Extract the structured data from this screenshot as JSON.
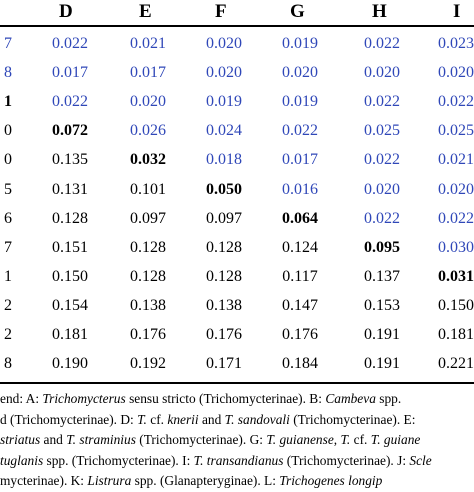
{
  "headers": [
    "D",
    "E",
    "F",
    "G",
    "H",
    "I"
  ],
  "rows": [
    {
      "label": "7",
      "values": [
        "0.022",
        "0.021",
        "0.020",
        "0.019",
        "0.022",
        "0.023"
      ],
      "blue": [
        true,
        true,
        true,
        true,
        true,
        true
      ],
      "bold": [
        false,
        false,
        false,
        false,
        false,
        false
      ],
      "label_blue": true,
      "label_bold": false
    },
    {
      "label": "8",
      "values": [
        "0.017",
        "0.017",
        "0.020",
        "0.020",
        "0.020",
        "0.020"
      ],
      "blue": [
        true,
        true,
        true,
        true,
        true,
        true
      ],
      "bold": [
        false,
        false,
        false,
        false,
        false,
        false
      ],
      "label_blue": true,
      "label_bold": false
    },
    {
      "label": "1",
      "values": [
        "0.022",
        "0.020",
        "0.019",
        "0.019",
        "0.022",
        "0.022"
      ],
      "blue": [
        true,
        true,
        true,
        true,
        true,
        true
      ],
      "bold": [
        false,
        false,
        false,
        false,
        false,
        false
      ],
      "label_blue": false,
      "label_bold": true
    },
    {
      "label": "0",
      "values": [
        "0.072",
        "0.026",
        "0.024",
        "0.022",
        "0.025",
        "0.025"
      ],
      "blue": [
        false,
        true,
        true,
        true,
        true,
        true
      ],
      "bold": [
        true,
        false,
        false,
        false,
        false,
        false
      ],
      "label_blue": false,
      "label_bold": false
    },
    {
      "label": "0",
      "values": [
        "0.135",
        "0.032",
        "0.018",
        "0.017",
        "0.022",
        "0.021"
      ],
      "blue": [
        false,
        false,
        true,
        true,
        true,
        true
      ],
      "bold": [
        false,
        true,
        false,
        false,
        false,
        false
      ],
      "label_blue": false,
      "label_bold": false
    },
    {
      "label": "5",
      "values": [
        "0.131",
        "0.101",
        "0.050",
        "0.016",
        "0.020",
        "0.020"
      ],
      "blue": [
        false,
        false,
        false,
        true,
        true,
        true
      ],
      "bold": [
        false,
        false,
        true,
        false,
        false,
        false
      ],
      "label_blue": false,
      "label_bold": false
    },
    {
      "label": "6",
      "values": [
        "0.128",
        "0.097",
        "0.097",
        "0.064",
        "0.022",
        "0.022"
      ],
      "blue": [
        false,
        false,
        false,
        false,
        true,
        true
      ],
      "bold": [
        false,
        false,
        false,
        true,
        false,
        false
      ],
      "label_blue": false,
      "label_bold": false
    },
    {
      "label": "7",
      "values": [
        "0.151",
        "0.128",
        "0.128",
        "0.124",
        "0.095",
        "0.030"
      ],
      "blue": [
        false,
        false,
        false,
        false,
        false,
        true
      ],
      "bold": [
        false,
        false,
        false,
        false,
        true,
        false
      ],
      "label_blue": false,
      "label_bold": false
    },
    {
      "label": "1",
      "values": [
        "0.150",
        "0.128",
        "0.128",
        "0.117",
        "0.137",
        "0.031"
      ],
      "blue": [
        false,
        false,
        false,
        false,
        false,
        false
      ],
      "bold": [
        false,
        false,
        false,
        false,
        false,
        true
      ],
      "label_blue": false,
      "label_bold": false
    },
    {
      "label": "2",
      "values": [
        "0.154",
        "0.138",
        "0.138",
        "0.147",
        "0.153",
        "0.150"
      ],
      "blue": [
        false,
        false,
        false,
        false,
        false,
        false
      ],
      "bold": [
        false,
        false,
        false,
        false,
        false,
        false
      ],
      "label_blue": false,
      "label_bold": false
    },
    {
      "label": "2",
      "values": [
        "0.181",
        "0.176",
        "0.176",
        "0.176",
        "0.191",
        "0.181"
      ],
      "blue": [
        false,
        false,
        false,
        false,
        false,
        false
      ],
      "bold": [
        false,
        false,
        false,
        false,
        false,
        false
      ],
      "label_blue": false,
      "label_bold": false
    },
    {
      "label": "8",
      "values": [
        "0.190",
        "0.192",
        "0.171",
        "0.184",
        "0.191",
        "0.221"
      ],
      "blue": [
        false,
        false,
        false,
        false,
        false,
        false
      ],
      "bold": [
        false,
        false,
        false,
        false,
        false,
        false
      ],
      "label_blue": false,
      "label_bold": false
    }
  ],
  "legend": {
    "line1": [
      {
        "t": "end: A: ",
        "i": false
      },
      {
        "t": "Trichomycterus",
        "i": true
      },
      {
        "t": " sensu stricto (Trichomycterinae). B: ",
        "i": false
      },
      {
        "t": "Cambeva",
        "i": true
      },
      {
        "t": " spp.",
        "i": false
      }
    ],
    "line2": [
      {
        "t": "d (Trichomycterinae). D: ",
        "i": false
      },
      {
        "t": "T.",
        "i": true
      },
      {
        "t": " cf. ",
        "i": false
      },
      {
        "t": "knerii",
        "i": true
      },
      {
        "t": " and ",
        "i": false
      },
      {
        "t": "T. sandovali",
        "i": true
      },
      {
        "t": " (Trichomycterinae). E:",
        "i": false
      }
    ],
    "line3": [
      {
        "t": "striatus",
        "i": true
      },
      {
        "t": " and ",
        "i": false
      },
      {
        "t": "T. straminius",
        "i": true
      },
      {
        "t": " (Trichomycterinae). G: ",
        "i": false
      },
      {
        "t": "T. guianense",
        "i": true
      },
      {
        "t": ", ",
        "i": false
      },
      {
        "t": "T.",
        "i": true
      },
      {
        "t": " cf. ",
        "i": false
      },
      {
        "t": "T. guiane",
        "i": true
      }
    ],
    "line4": [
      {
        "t": "tuglanis",
        "i": true
      },
      {
        "t": " spp. (Trichomycterinae). I: ",
        "i": false
      },
      {
        "t": "T. transandianus",
        "i": true
      },
      {
        "t": " (Trichomycterinae). J: ",
        "i": false
      },
      {
        "t": "Scle",
        "i": true
      }
    ],
    "line5": [
      {
        "t": "mycterinae). K: ",
        "i": false
      },
      {
        "t": "Listrura",
        "i": true
      },
      {
        "t": " spp. (Glanapteryginae). L: ",
        "i": false
      },
      {
        "t": "Trichogenes longip",
        "i": true
      }
    ]
  }
}
